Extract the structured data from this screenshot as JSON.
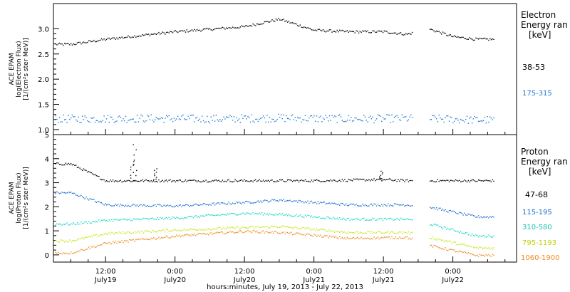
{
  "colors": {
    "black": "#000000",
    "blue_e": "#1e78d6",
    "blue_p": "#1e6fd0",
    "cyan": "#19d8c6",
    "yellow": "#c8e619",
    "orange": "#f08a1e"
  },
  "chart_data": [
    {
      "type": "scatter",
      "panel": "electron",
      "ylabel_line1": "ACE EPAM",
      "ylabel_line2": "log(Electron Flux)",
      "ylabel_line3": "[1/(cm²s ster MeV)]",
      "ylim": [
        0.9,
        3.5
      ],
      "yticks": [
        "1.0",
        "1.5",
        "2.0",
        "2.5",
        "3.0"
      ],
      "legend_title": [
        "Electron",
        "Energy ran",
        "[keV]"
      ],
      "series": [
        {
          "name": "38-53",
          "color": "#000000",
          "x": [
            "07/19 06:00",
            "07/19 12:00",
            "07/20 00:00",
            "07/20 06:00",
            "07/20 12:00",
            "07/20 18:00",
            "07/21 00:00",
            "07/21 06:00",
            "07/21 12:00",
            "07/21 16:00",
            "07/21 20:00",
            "07/22 00:00",
            "07/22 04:00"
          ],
          "y": [
            2.7,
            2.8,
            2.95,
            3.0,
            3.05,
            3.2,
            2.98,
            2.95,
            2.95,
            2.9,
            3.0,
            2.85,
            2.8
          ]
        },
        {
          "name": "175-315",
          "color": "#1e78d6",
          "x": [
            "07/19 06:00",
            "07/19 18:00",
            "07/20 06:00",
            "07/20 18:00",
            "07/21 06:00",
            "07/21 18:00",
            "07/22 04:00"
          ],
          "y": [
            1.22,
            1.23,
            1.22,
            1.24,
            1.22,
            1.23,
            1.2
          ]
        }
      ]
    },
    {
      "type": "scatter",
      "panel": "proton",
      "ylabel_line1": "ACE EPAM",
      "ylabel_line2": "log(Proton Flux)",
      "ylabel_line3": "[1/(cm²s ster MeV)]",
      "ylim": [
        -0.3,
        5.0
      ],
      "yticks": [
        "0",
        "1",
        "2",
        "3",
        "4",
        "5"
      ],
      "legend_title": [
        "Proton",
        "Energy ran",
        "[keV]"
      ],
      "series": [
        {
          "name": "47-68",
          "color": "#000000",
          "x": [
            "07/19 06:00",
            "07/19 12:00",
            "07/19 16:00",
            "07/19 20:00",
            "07/20 00:00",
            "07/20 12:00",
            "07/21 00:00",
            "07/21 12:00",
            "07/21 16:00",
            "07/21 20:00",
            "07/22 04:00"
          ],
          "y": [
            3.8,
            3.1,
            3.1,
            3.1,
            3.1,
            3.1,
            3.1,
            3.15,
            3.1,
            3.1,
            3.1
          ]
        },
        {
          "name": "115-195",
          "color": "#1e6fd0",
          "x": [
            "07/19 06:00",
            "07/19 12:00",
            "07/20 00:00",
            "07/20 12:00",
            "07/20 18:00",
            "07/21 06:00",
            "07/21 16:00",
            "07/21 20:00",
            "07/22 04:00"
          ],
          "y": [
            2.6,
            2.1,
            2.05,
            2.2,
            2.3,
            2.1,
            2.1,
            2.0,
            1.6
          ]
        },
        {
          "name": "310-580",
          "color": "#19d8c6",
          "x": [
            "07/19 06:00",
            "07/19 12:00",
            "07/20 00:00",
            "07/20 12:00",
            "07/20 18:00",
            "07/21 06:00",
            "07/21 16:00",
            "07/21 20:00",
            "07/22 04:00"
          ],
          "y": [
            1.3,
            1.45,
            1.55,
            1.75,
            1.7,
            1.5,
            1.5,
            1.3,
            0.8
          ]
        },
        {
          "name": "795-1193",
          "color": "#c8e619",
          "x": [
            "07/19 06:00",
            "07/19 12:00",
            "07/20 00:00",
            "07/20 12:00",
            "07/20 18:00",
            "07/21 06:00",
            "07/21 16:00",
            "07/21 20:00",
            "07/22 04:00"
          ],
          "y": [
            0.6,
            0.9,
            1.05,
            1.15,
            1.2,
            0.95,
            0.95,
            0.75,
            0.3
          ]
        },
        {
          "name": "1060-1900",
          "color": "#f08a1e",
          "x": [
            "07/19 06:00",
            "07/19 12:00",
            "07/20 00:00",
            "07/20 12:00",
            "07/20 18:00",
            "07/21 06:00",
            "07/21 16:00",
            "07/21 20:00",
            "07/22 04:00"
          ],
          "y": [
            0.1,
            0.5,
            0.8,
            1.0,
            0.95,
            0.7,
            0.75,
            0.4,
            0.0
          ]
        }
      ]
    }
  ],
  "xaxis": {
    "ticks": [
      {
        "time": "12:00",
        "date": "July19",
        "pos_hours": 12
      },
      {
        "time": "0:00",
        "date": "July20",
        "pos_hours": 24
      },
      {
        "time": "12:00",
        "date": "July20",
        "pos_hours": 36
      },
      {
        "time": "0:00",
        "date": "July21",
        "pos_hours": 48
      },
      {
        "time": "12:00",
        "date": "July21",
        "pos_hours": 60
      },
      {
        "time": "0:00",
        "date": "July22",
        "pos_hours": 72
      }
    ],
    "range_hours": [
      3,
      83
    ],
    "data_gap_hours": [
      65.0,
      67.8
    ],
    "data_end_hours": 79,
    "label": "hours:minutes, July 19, 2013 - July 22, 2013"
  }
}
